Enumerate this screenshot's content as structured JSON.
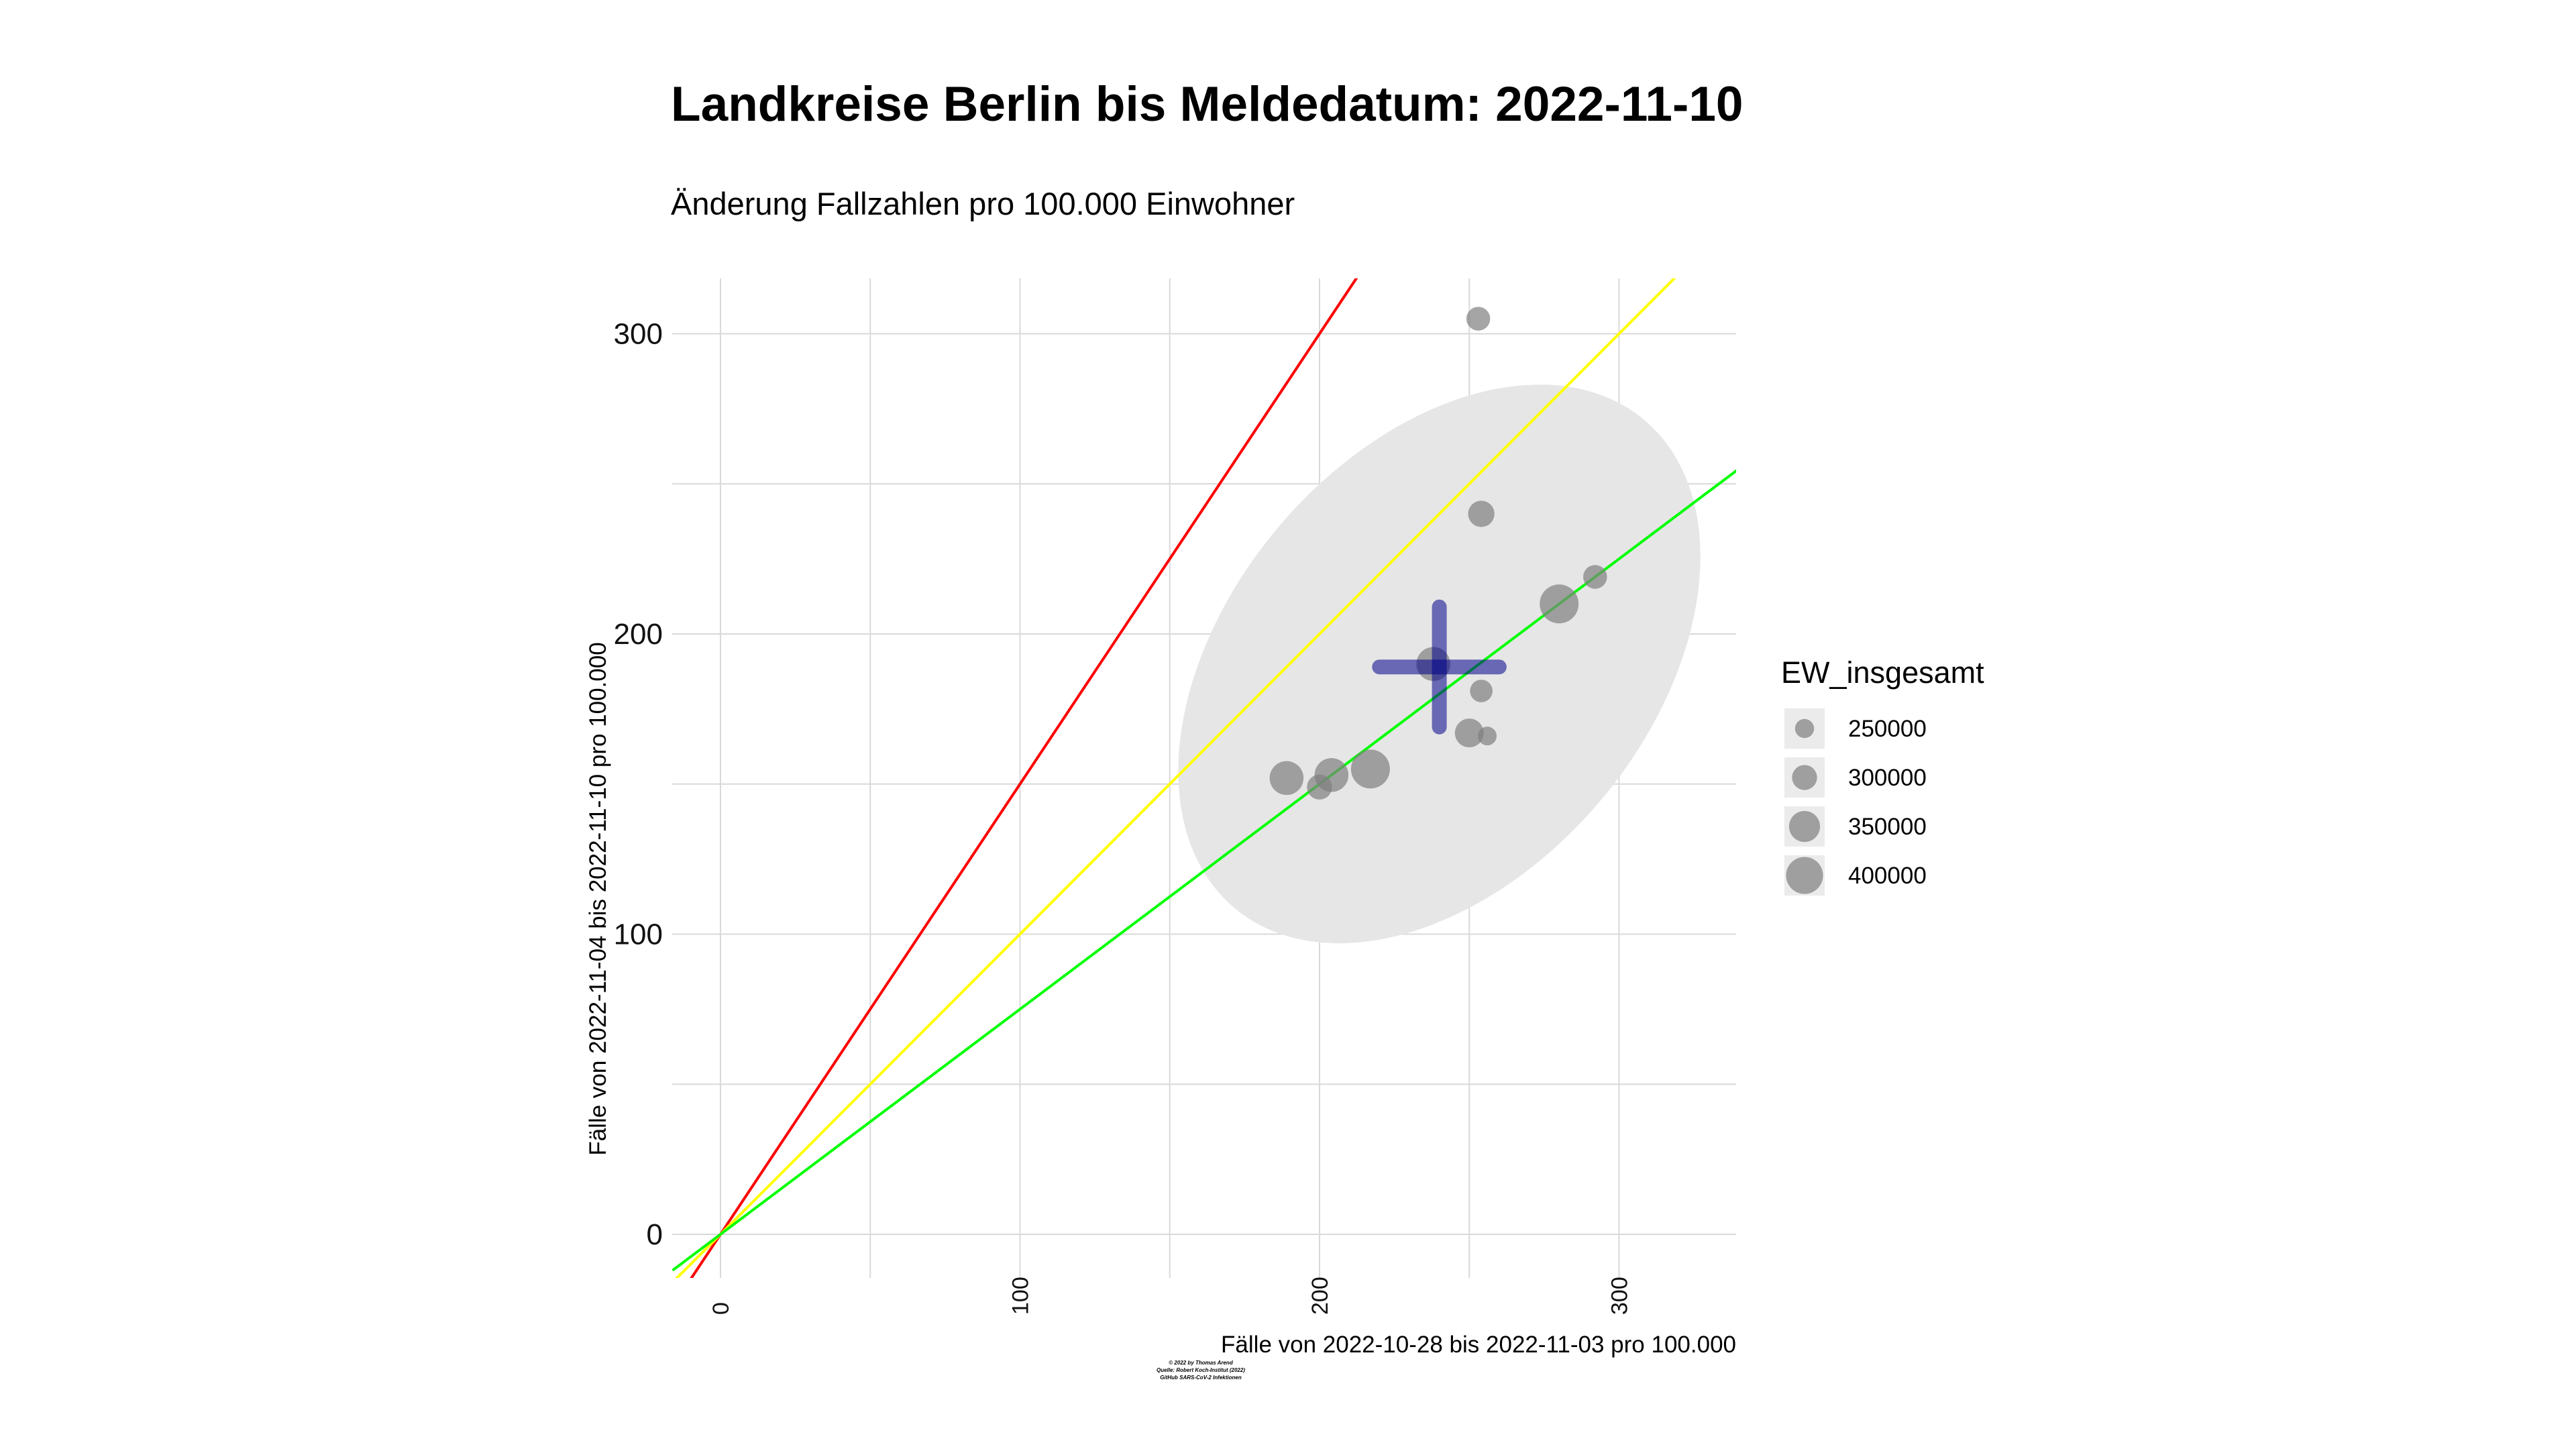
{
  "chart_data": {
    "type": "scatter",
    "title": "Landkreise Berlin bis Meldedatum: 2022-11-10",
    "subtitle": "Änderung Fallzahlen pro 100.000 Einwohner",
    "xlabel": "Fälle von 2022-10-28 bis 2022-11-03 pro 100.000",
    "ylabel": "Fälle von 2022-11-04 bis 2022-11-10 pro 100.000",
    "xlim": [
      -16,
      340
    ],
    "ylim": [
      -16,
      320
    ],
    "x_ticks": [
      "0",
      "100",
      "200",
      "300"
    ],
    "y_ticks": [
      "0",
      "100",
      "200",
      "300"
    ],
    "grid": true,
    "reference_lines": [
      {
        "color": "#ff0000",
        "slope": 1.5
      },
      {
        "color": "#ffff00",
        "slope": 1.0
      },
      {
        "color": "#00ff00",
        "slope": 0.75
      }
    ],
    "ellipse": {
      "center": [
        240,
        190
      ],
      "color": "#e6e6e6"
    },
    "mean_cross": {
      "x": 240,
      "y": 189,
      "x_half": 20,
      "y_half": 20,
      "color": "#00008b"
    },
    "points": [
      {
        "x": 253,
        "y": 305,
        "pop": 280000
      },
      {
        "x": 254,
        "y": 240,
        "pop": 300000
      },
      {
        "x": 292,
        "y": 219,
        "pop": 280000
      },
      {
        "x": 280,
        "y": 210,
        "pop": 400000
      },
      {
        "x": 238,
        "y": 190,
        "pop": 360000
      },
      {
        "x": 254,
        "y": 181,
        "pop": 270000
      },
      {
        "x": 250,
        "y": 167,
        "pop": 320000
      },
      {
        "x": 256,
        "y": 166,
        "pop": 240000
      },
      {
        "x": 217,
        "y": 155,
        "pop": 400000
      },
      {
        "x": 204,
        "y": 153,
        "pop": 360000
      },
      {
        "x": 189,
        "y": 152,
        "pop": 360000
      },
      {
        "x": 200,
        "y": 149,
        "pop": 290000
      }
    ],
    "legend": {
      "title": "EW_insgesamt",
      "placement": "right",
      "entries": [
        {
          "label": "250000",
          "value": 250000
        },
        {
          "label": "300000",
          "value": 300000
        },
        {
          "label": "350000",
          "value": 350000
        },
        {
          "label": "400000",
          "value": 400000
        }
      ]
    },
    "caption": [
      "© 2022 by Thomas Arend",
      "Quelle: Robert Koch-Institut (2022)",
      "GitHub SARS-CoV-2 Infektionen"
    ]
  }
}
